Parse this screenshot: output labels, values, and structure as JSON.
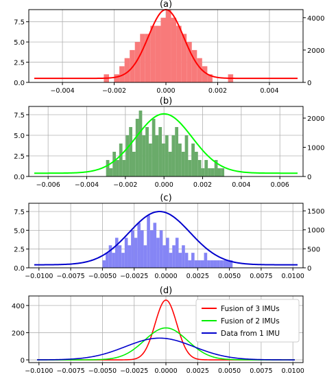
{
  "chart_data": [
    {
      "type": "bar",
      "title": "(a)",
      "bar_color": "#f87a7a",
      "line_color": "#ff0000",
      "xlim": [
        -0.0053,
        0.0053
      ],
      "ylim_left": [
        0,
        9
      ],
      "ylim_right": [
        0,
        4500
      ],
      "x_ticks": [
        -0.004,
        -0.002,
        0.0,
        0.002,
        0.004
      ],
      "x_tick_labels": [
        "−0.004",
        "−0.002",
        "0.000",
        "0.002",
        "0.004"
      ],
      "y_ticks_left": [
        0,
        2.5,
        5,
        7.5
      ],
      "y_tick_labels_left": [
        "0.0",
        "2.5",
        "5.0",
        "7.5"
      ],
      "y_ticks_right": [
        0,
        2000,
        4000
      ],
      "y_tick_labels_right": [
        "0",
        "2000",
        "4000"
      ],
      "bin_width": 0.0002,
      "bins_start": -0.0026,
      "hist_values": [
        0,
        1,
        0,
        1,
        2,
        3,
        4,
        5,
        6,
        6,
        7,
        7,
        8,
        9,
        8,
        7,
        6,
        5,
        4,
        3,
        2,
        1,
        0,
        0,
        0,
        1
      ],
      "curve": {
        "mean": 0.0,
        "std": 0.00068,
        "peak": 9.0,
        "baseline": 0.5
      }
    },
    {
      "type": "bar",
      "title": "(b)",
      "bar_color": "#6aab6a",
      "line_color": "#00ff00",
      "xlim": [
        -0.007,
        0.0072
      ],
      "ylim_left": [
        0,
        8.5
      ],
      "ylim_right": [
        0,
        2400
      ],
      "x_ticks": [
        -0.006,
        -0.004,
        -0.002,
        0.0,
        0.002,
        0.004,
        0.006
      ],
      "x_tick_labels": [
        "−0.006",
        "−0.004",
        "−0.002",
        "0.000",
        "0.002",
        "0.004",
        "0.006"
      ],
      "y_ticks_left": [
        0,
        2.5,
        5,
        7.5
      ],
      "y_tick_labels_left": [
        "0.0",
        "2.5",
        "5.0",
        "7.5"
      ],
      "y_ticks_right": [
        0,
        1000,
        2000
      ],
      "y_tick_labels_right": [
        "0",
        "1000",
        "2000"
      ],
      "bin_width": 0.00017,
      "bins_start": -0.003,
      "hist_values": [
        2,
        1,
        3,
        2,
        4,
        2,
        5,
        6,
        3,
        7,
        8,
        5,
        6,
        4,
        7,
        5,
        6,
        4,
        5,
        3,
        5,
        6,
        4,
        3,
        5,
        2,
        4,
        3,
        2,
        1,
        2,
        1,
        1,
        2,
        1,
        1
      ],
      "curve": {
        "mean": 0.0,
        "std": 0.00145,
        "peak": 7.6,
        "baseline": 0.4
      }
    },
    {
      "type": "bar",
      "title": "(c)",
      "bar_color": "#8585f5",
      "line_color": "#0000cc",
      "xlim": [
        -0.0108,
        0.0108
      ],
      "ylim_left": [
        0,
        8.6
      ],
      "ylim_right": [
        0,
        1700
      ],
      "x_ticks": [
        -0.01,
        -0.0075,
        -0.005,
        -0.0025,
        0.0,
        0.0025,
        0.005,
        0.0075,
        0.01
      ],
      "x_tick_labels": [
        "−0.0100",
        "−0.0075",
        "−0.0050",
        "−0.0025",
        "0.0000",
        "0.0025",
        "0.0050",
        "0.0075",
        "0.0100"
      ],
      "y_ticks_left": [
        0,
        2.5,
        5,
        7.5
      ],
      "y_tick_labels_left": [
        "0.0",
        "2.5",
        "5.0",
        "7.5"
      ],
      "y_ticks_right": [
        0,
        500,
        1000,
        1500
      ],
      "y_tick_labels_right": [
        "0",
        "500",
        "1000",
        "1500"
      ],
      "bin_width": 0.00025,
      "bins_start": -0.005,
      "hist_values": [
        1,
        2,
        3,
        2,
        4,
        3,
        2,
        4,
        3,
        5,
        4,
        6,
        5,
        3,
        7,
        5,
        6,
        4,
        5,
        3,
        4,
        2,
        3,
        4,
        2,
        3,
        2,
        1,
        2,
        1,
        1,
        1,
        2,
        1,
        1,
        1,
        1,
        1,
        1,
        1,
        1
      ],
      "curve": {
        "mean": -0.0005,
        "std": 0.0024,
        "peak": 7.5,
        "baseline": 0.4
      }
    },
    {
      "type": "line",
      "title": "(d)",
      "xlim": [
        -0.0108,
        0.0108
      ],
      "ylim": [
        -20,
        470
      ],
      "x_ticks": [
        -0.01,
        -0.0075,
        -0.005,
        -0.0025,
        0.0,
        0.0025,
        0.005,
        0.0075,
        0.01
      ],
      "x_tick_labels": [
        "−0.0100",
        "−0.0075",
        "−0.0050",
        "−0.0025",
        "0.0000",
        "0.0025",
        "0.0050",
        "0.0075",
        "0.0100"
      ],
      "y_ticks": [
        0,
        200,
        400
      ],
      "y_tick_labels": [
        "0",
        "200",
        "400"
      ],
      "legend_position": "top-right",
      "series": [
        {
          "name": "Fusion of 3 IMUs",
          "color": "#ff0000",
          "mean": 0.0,
          "std": 0.00085,
          "peak": 440
        },
        {
          "name": "Fusion of 2 IMUs",
          "color": "#00ee00",
          "mean": 0.0,
          "std": 0.0017,
          "peak": 235
        },
        {
          "name": "Data from 1 IMU",
          "color": "#0000cc",
          "mean": -0.0005,
          "std": 0.0027,
          "peak": 160
        }
      ]
    }
  ]
}
